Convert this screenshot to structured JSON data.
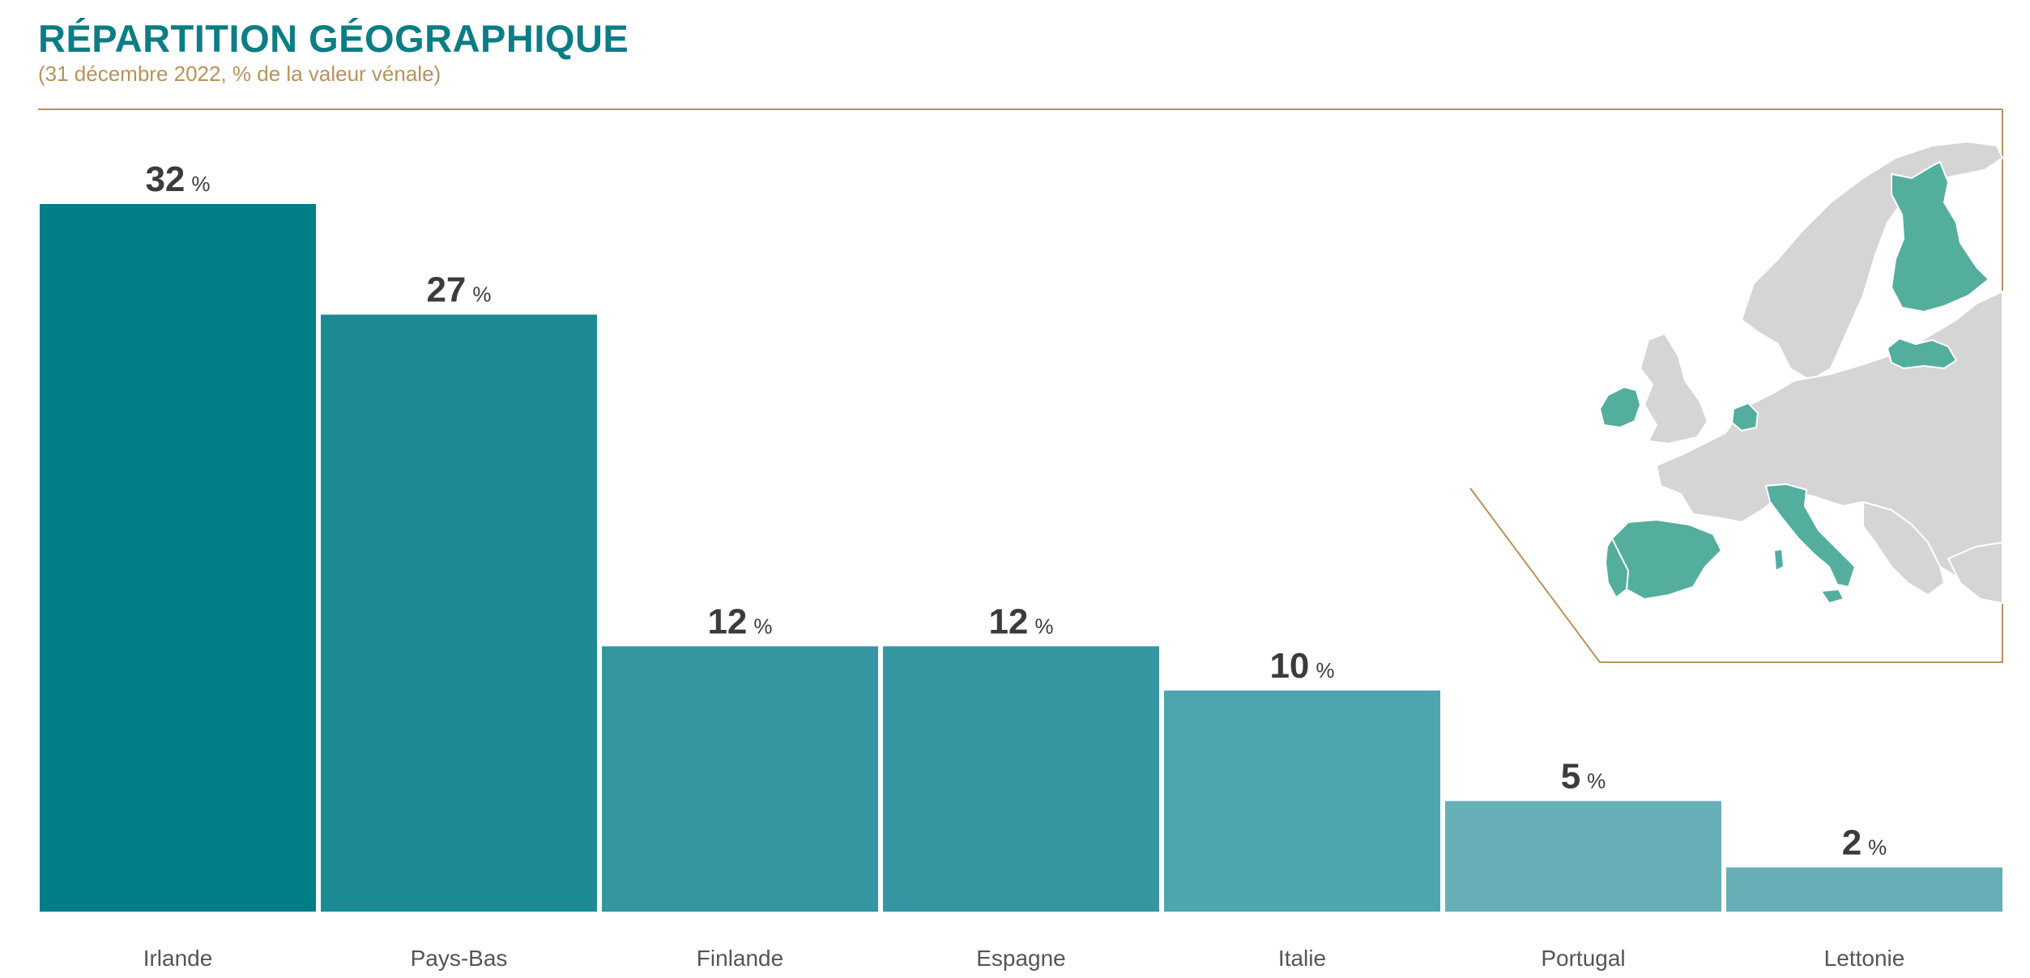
{
  "header": {
    "title": "RÉPARTITION GÉOGRAPHIQUE",
    "subtitle": "(31 décembre 2022, % de la valeur vénale)"
  },
  "chart_data": {
    "type": "bar",
    "title": "RÉPARTITION GÉOGRAPHIQUE",
    "subtitle": "(31 décembre 2022, % de la valeur vénale)",
    "categories": [
      "Irlande",
      "Pays-Bas",
      "Finlande",
      "Espagne",
      "Italie",
      "Portugal",
      "Lettonie"
    ],
    "values": [
      32,
      27,
      12,
      12,
      10,
      5,
      2
    ],
    "value_suffix": "%",
    "ylim": [
      0,
      32
    ],
    "grid": false,
    "legend": "none",
    "colors": [
      "#007e88",
      "#1c8b94",
      "#3596a2",
      "#3596a2",
      "#4ea5b0",
      "#66afb7",
      "#66afb7"
    ]
  },
  "map": {
    "highlight_color": "#53ae9e",
    "base_color": "#d5d5d5",
    "border_color": "#b8925a",
    "highlighted_countries": [
      "Irlande",
      "Pays-Bas",
      "Finlande",
      "Espagne",
      "Italie",
      "Portugal",
      "Lettonie"
    ]
  }
}
